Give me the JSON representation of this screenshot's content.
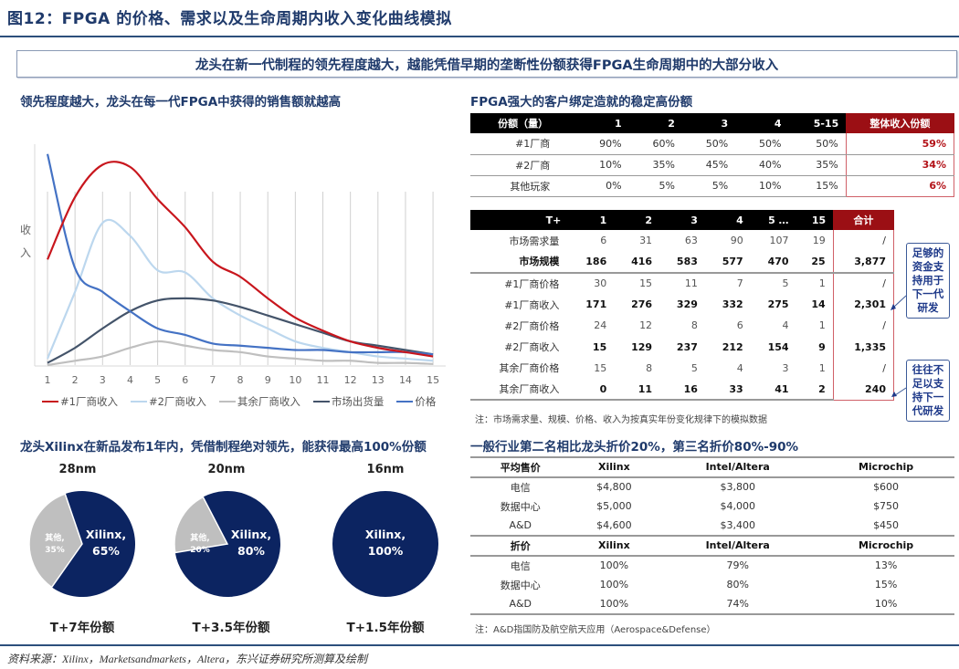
{
  "figure": {
    "title": "图12：FPGA 的价格、需求以及生命周期内收入变化曲线模拟",
    "banner": "龙头在新一代制程的领先程度越大，越能凭借早期的垄断性份额获得FPGA生命周期中的大部分收入",
    "source": "资料来源：Xilinx，Marketsandmarkets，Altera，东兴证券研究所测算及绘制"
  },
  "line_section": {
    "title": "领先程度越大，龙头在每一代FPGA中获得的销售额就越高",
    "ylabel_1": "收",
    "ylabel_2": "入"
  },
  "chart_data": [
    {
      "type": "line",
      "title": "领先程度越大，龙头在每一代FPGA中获得的销售额就越高",
      "xlabel": "",
      "ylabel": "收入",
      "x": [
        1,
        2,
        3,
        4,
        5,
        6,
        7,
        8,
        9,
        10,
        11,
        12,
        13,
        14,
        15
      ],
      "grid": "vertical",
      "legend_position": "bottom",
      "y_units": "relative (no y-axis ticks shown; values are estimated relative heights 0-100)",
      "series": [
        {
          "name": "#1厂商收入",
          "color": "#c8161d",
          "values": [
            49,
            78,
            93,
            92,
            77,
            64,
            48,
            41,
            31,
            22,
            16,
            11,
            8,
            6,
            4
          ]
        },
        {
          "name": "#2厂商收入",
          "color": "#bcd7ee",
          "values": [
            3,
            34,
            66,
            60,
            44,
            43,
            31,
            23,
            17,
            11,
            8,
            6,
            4,
            3,
            2
          ]
        },
        {
          "name": "其余厂商收入",
          "color": "#bfbfbf",
          "values": [
            0,
            2,
            4,
            8,
            11,
            9,
            7,
            6,
            4,
            3,
            2,
            2,
            1,
            1,
            0.5
          ]
        },
        {
          "name": "市场出货量",
          "color": "#44546a",
          "values": [
            1,
            8,
            17,
            25,
            30,
            31,
            30,
            27,
            23,
            19,
            15,
            11,
            9,
            7,
            5
          ]
        },
        {
          "name": "价格",
          "color": "#4472c4",
          "values": [
            98,
            45,
            34,
            25,
            17,
            14,
            10,
            9,
            8,
            7,
            7,
            6,
            6,
            6,
            5
          ]
        }
      ]
    },
    {
      "type": "pie",
      "title": "28nm",
      "caption": "T+7年份额",
      "labels": [
        "Xilinx",
        "其他"
      ],
      "values": [
        65,
        35
      ],
      "colors": [
        "#0c2461",
        "#bfbfbf"
      ]
    },
    {
      "type": "pie",
      "title": "20nm",
      "caption": "T+3.5年份额",
      "labels": [
        "Xilinx",
        "其他"
      ],
      "values": [
        80,
        20
      ],
      "colors": [
        "#0c2461",
        "#bfbfbf"
      ]
    },
    {
      "type": "pie",
      "title": "16nm",
      "caption": "T+1.5年份额",
      "labels": [
        "Xilinx"
      ],
      "values": [
        100
      ],
      "colors": [
        "#0c2461"
      ]
    },
    {
      "type": "table",
      "title": "FPGA强大的客户绑定造就的稳定高份额",
      "columns": [
        "份额（量）",
        "1",
        "2",
        "3",
        "4",
        "5-15",
        "整体收入份额"
      ],
      "rows": [
        [
          "#1厂商",
          "90%",
          "60%",
          "50%",
          "50%",
          "50%",
          "59%"
        ],
        [
          "#2厂商",
          "10%",
          "35%",
          "45%",
          "40%",
          "35%",
          "34%"
        ],
        [
          "其他玩家",
          "0%",
          "5%",
          "5%",
          "10%",
          "15%",
          "6%"
        ]
      ]
    },
    {
      "type": "table",
      "columns": [
        "T+",
        "1",
        "2",
        "3",
        "4",
        "5 …",
        "15",
        "合计"
      ],
      "rows": [
        [
          "市场需求量",
          "6",
          "31",
          "63",
          "90",
          "107",
          "19",
          "/"
        ],
        [
          "市场规模",
          "186",
          "416",
          "583",
          "577",
          "470",
          "25",
          "3,877"
        ],
        [
          "#1厂商价格",
          "30",
          "15",
          "11",
          "7",
          "5",
          "1",
          "/"
        ],
        [
          "#1厂商收入",
          "171",
          "276",
          "329",
          "332",
          "275",
          "14",
          "2,301"
        ],
        [
          "#2厂商价格",
          "24",
          "12",
          "8",
          "6",
          "4",
          "1",
          "/"
        ],
        [
          "#2厂商收入",
          "15",
          "129",
          "237",
          "212",
          "154",
          "9",
          "1,335"
        ],
        [
          "其余厂商价格",
          "15",
          "8",
          "5",
          "4",
          "3",
          "1",
          "/"
        ],
        [
          "其余厂商收入",
          "0",
          "11",
          "16",
          "33",
          "41",
          "2",
          "240"
        ]
      ],
      "note": "注：市场需求量、规模、价格、收入为按真实年份变化规律下的模拟数据"
    },
    {
      "type": "table",
      "title": "一般行业第二名相比龙头折价20%，第三名折价80%-90%",
      "columns": [
        "平均售价",
        "Xilinx",
        "Intel/Altera",
        "Microchip"
      ],
      "rows": [
        [
          "电信",
          "$4,800",
          "$3,800",
          "$600"
        ],
        [
          "数据中心",
          "$5,000",
          "$4,000",
          "$750"
        ],
        [
          "A&D",
          "$4,600",
          "$3,400",
          "$450"
        ]
      ],
      "columns_2": [
        "折价",
        "Xilinx",
        "Intel/Altera",
        "Microchip"
      ],
      "rows_2": [
        [
          "电信",
          "100%",
          "79%",
          "13%"
        ],
        [
          "数据中心",
          "100%",
          "80%",
          "15%"
        ],
        [
          "A&D",
          "100%",
          "74%",
          "10%"
        ]
      ],
      "note": "注：A&D指国防及航空航天应用（Aerospace&Defense）"
    }
  ],
  "share_table": {
    "title": "FPGA强大的客户绑定造就的稳定高份额",
    "headers": [
      "份额（量）",
      "1",
      "2",
      "3",
      "4",
      "5-15",
      "整体收入份额"
    ],
    "rows": [
      [
        "#1厂商",
        "90%",
        "60%",
        "50%",
        "50%",
        "50%",
        "59%"
      ],
      [
        "#2厂商",
        "10%",
        "35%",
        "45%",
        "40%",
        "35%",
        "34%"
      ],
      [
        "其他玩家",
        "0%",
        "5%",
        "5%",
        "10%",
        "15%",
        "6%"
      ]
    ]
  },
  "market_table": {
    "headers": [
      "T+",
      "1",
      "2",
      "3",
      "4",
      "5 …",
      "15",
      "合计"
    ],
    "rows": [
      [
        "市场需求量",
        "6",
        "31",
        "63",
        "90",
        "107",
        "19",
        "/"
      ],
      [
        "市场规模",
        "186",
        "416",
        "583",
        "577",
        "470",
        "25",
        "3,877"
      ],
      [
        "#1厂商价格",
        "30",
        "15",
        "11",
        "7",
        "5",
        "1",
        "/"
      ],
      [
        "#1厂商收入",
        "171",
        "276",
        "329",
        "332",
        "275",
        "14",
        "2,301"
      ],
      [
        "#2厂商价格",
        "24",
        "12",
        "8",
        "6",
        "4",
        "1",
        "/"
      ],
      [
        "#2厂商收入",
        "15",
        "129",
        "237",
        "212",
        "154",
        "9",
        "1,335"
      ],
      [
        "其余厂商价格",
        "15",
        "8",
        "5",
        "4",
        "3",
        "1",
        "/"
      ],
      [
        "其余厂商收入",
        "0",
        "11",
        "16",
        "33",
        "41",
        "2",
        "240"
      ]
    ],
    "note": "注：市场需求量、规模、价格、收入为按真实年份变化规律下的模拟数据",
    "callout_1": [
      "足够的",
      "资金支",
      "持用于",
      "下一代",
      "研发"
    ],
    "callout_2": [
      "往往不",
      "足以支",
      "持下一",
      "代研发"
    ]
  },
  "pie_section": {
    "title": "龙头Xilinx在新品发布1年内，凭借制程绝对领先，能获得最高100%份额",
    "pies": [
      {
        "node": "28nm",
        "caption": "T+7年份额",
        "main_label": "Xilinx,",
        "main_pct": "65%",
        "other_label": "其他,",
        "other_pct": "35%"
      },
      {
        "node": "20nm",
        "caption": "T+3.5年份额",
        "main_label": "Xilinx,",
        "main_pct": "80%",
        "other_label": "其他,",
        "other_pct": "20%"
      },
      {
        "node": "16nm",
        "caption": "T+1.5年份额",
        "main_label": "Xilinx,",
        "main_pct": "100%"
      }
    ]
  },
  "price_table": {
    "title": "一般行业第二名相比龙头折价20%，第三名折价80%-90%",
    "headers_1": [
      "平均售价",
      "Xilinx",
      "Intel/Altera",
      "Microchip"
    ],
    "rows_1": [
      [
        "电信",
        "$4,800",
        "$3,800",
        "$600"
      ],
      [
        "数据中心",
        "$5,000",
        "$4,000",
        "$750"
      ],
      [
        "A&D",
        "$4,600",
        "$3,400",
        "$450"
      ]
    ],
    "headers_2": [
      "折价",
      "Xilinx",
      "Intel/Altera",
      "Microchip"
    ],
    "rows_2": [
      [
        "电信",
        "100%",
        "79%",
        "13%"
      ],
      [
        "数据中心",
        "100%",
        "80%",
        "15%"
      ],
      [
        "A&D",
        "100%",
        "74%",
        "10%"
      ]
    ],
    "note": "注：A&D指国防及航空航天应用（Aerospace&Defense）"
  },
  "colors": {
    "title_blue": "#1f3a6b",
    "header_black": "#000000",
    "header_red": "#9b0f14",
    "accent_red": "#b31218",
    "pie_navy": "#0c2461",
    "pie_gray": "#bfbfbf"
  }
}
